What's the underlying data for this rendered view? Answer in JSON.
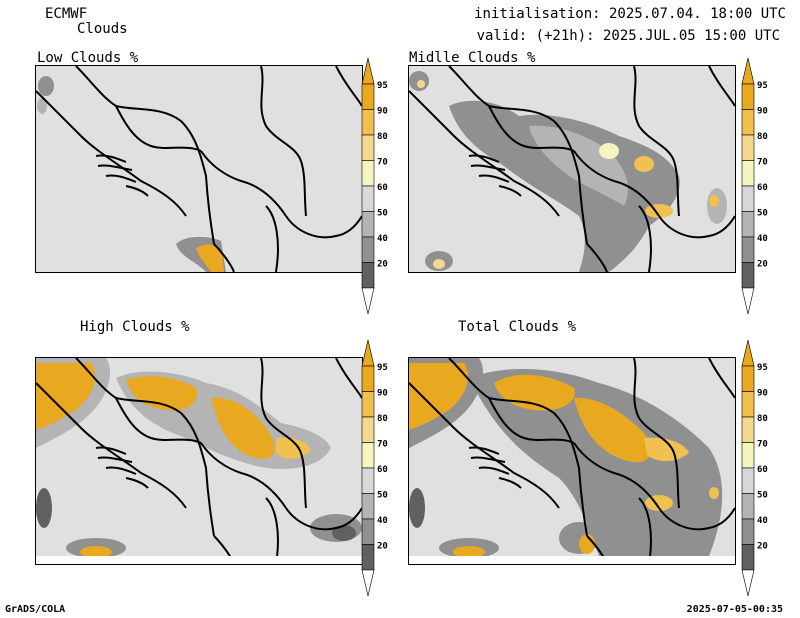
{
  "header": {
    "model": "ECMWF",
    "product": "Clouds",
    "initialisation": "initialisation: 2025.07.04. 18:00 UTC",
    "valid": "valid: (+21h): 2025.JUL.05 15:00 UTC"
  },
  "panels": [
    {
      "title": "Low Clouds %"
    },
    {
      "title": "Midlle Clouds %"
    },
    {
      "title": "High Clouds %"
    },
    {
      "title": "Total Clouds %"
    }
  ],
  "colorbar": {
    "labels": [
      "95",
      "90",
      "80",
      "70",
      "60",
      "50",
      "40",
      "20"
    ],
    "colors": [
      "#e8a820",
      "#f0c050",
      "#f5d890",
      "#f5f5c0",
      "#d8d8d8",
      "#b4b4b4",
      "#909090",
      "#606060"
    ]
  },
  "footer": {
    "left": "GrADS/COLA",
    "right": "2025-07-05-00:35"
  },
  "colors": {
    "land": "#e0e0e0",
    "border": "#000000"
  }
}
